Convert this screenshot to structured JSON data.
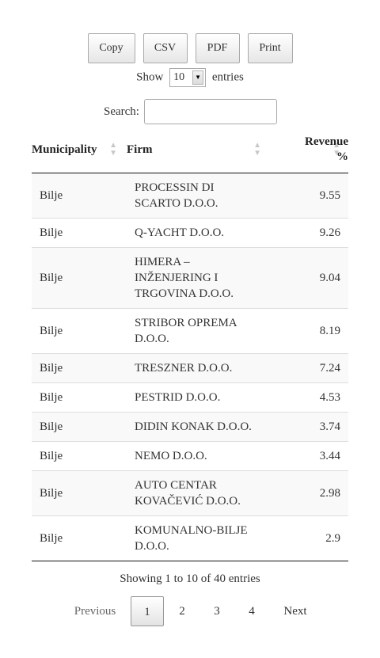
{
  "buttons": {
    "copy": "Copy",
    "csv": "CSV",
    "pdf": "PDF",
    "print": "Print"
  },
  "length_menu": {
    "before": "Show",
    "value": "10",
    "after": "entries"
  },
  "search": {
    "label": "Search:",
    "value": ""
  },
  "table": {
    "columns": [
      "Municipality",
      "Firm",
      "Revenue",
      "%"
    ],
    "rows": [
      {
        "municipality": "Bilje",
        "firm_lines": [
          "PROCESSIN DI",
          "SCARTO D.O.O."
        ],
        "revenue": "9.55"
      },
      {
        "municipality": "Bilje",
        "firm_lines": [
          "Q-YACHT D.O.O."
        ],
        "revenue": "9.26"
      },
      {
        "municipality": "Bilje",
        "firm_lines": [
          "HIMERA –",
          "INŽENJERING I",
          "TRGOVINA D.O.O."
        ],
        "revenue": "9.04"
      },
      {
        "municipality": "Bilje",
        "firm_lines": [
          "STRIBOR OPREMA",
          "D.O.O."
        ],
        "revenue": "8.19"
      },
      {
        "municipality": "Bilje",
        "firm_lines": [
          "TRESZNER D.O.O."
        ],
        "revenue": "7.24"
      },
      {
        "municipality": "Bilje",
        "firm_lines": [
          "PESTRID D.O.O."
        ],
        "revenue": "4.53"
      },
      {
        "municipality": "Bilje",
        "firm_lines": [
          "DIDIN KONAK D.O.O."
        ],
        "revenue": "3.74"
      },
      {
        "municipality": "Bilje",
        "firm_lines": [
          "NEMO D.O.O."
        ],
        "revenue": "3.44"
      },
      {
        "municipality": "Bilje",
        "firm_lines": [
          "AUTO CENTAR",
          "KOVAČEVIĆ D.O.O."
        ],
        "revenue": "2.98"
      },
      {
        "municipality": "Bilje",
        "firm_lines": [
          "KOMUNALNO-BILJE",
          "D.O.O."
        ],
        "revenue": "2.9"
      }
    ]
  },
  "info": "Showing 1 to 10 of 40 entries",
  "pagination": {
    "previous": "Previous",
    "pages": [
      "1",
      "2",
      "3",
      "4"
    ],
    "current": "1",
    "next": "Next"
  },
  "icons": {
    "sort": "sort-both-icon",
    "select_arrow": "select-arrow-icon"
  }
}
